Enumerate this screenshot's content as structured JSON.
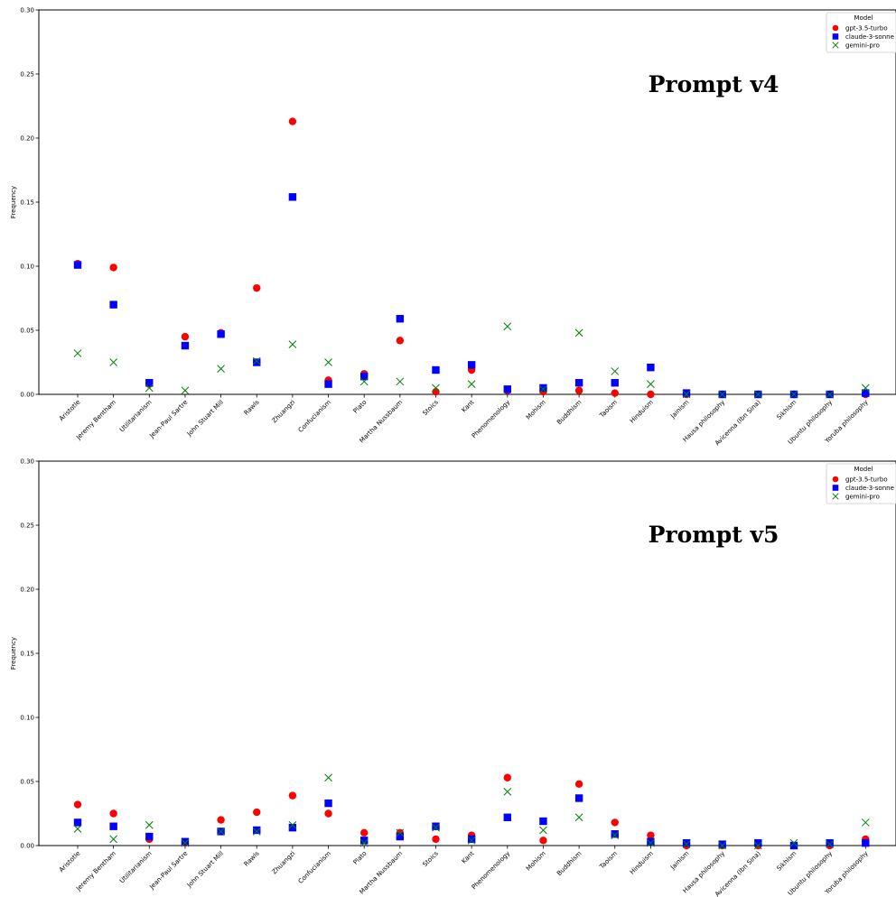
{
  "chart_data": [
    {
      "type": "scatter",
      "annotation": "Prompt v4",
      "ylabel": "Frequency",
      "xlabel": "",
      "ylim": [
        0,
        0.3
      ],
      "yticks": [
        "0.00",
        "0.05",
        "0.10",
        "0.15",
        "0.20",
        "0.25",
        "0.30"
      ],
      "legend": {
        "title": "Model",
        "placement": "top-right"
      },
      "categories": [
        "Aristotle",
        "Jeremy Bentham",
        "Utilitarianism",
        "Jean-Paul Sartre",
        "John Stuart Mill",
        "Rawls",
        "Zhuangzi",
        "Confucianism",
        "Plato",
        "Martha Nussbaum",
        "Stoics",
        "Kant",
        "Phenomenology",
        "Mohism",
        "Buddhism",
        "Taoism",
        "Hinduism",
        "Jainism",
        "Hausa philosophy",
        "Avicenna (Ibn Sina)",
        "Sikhism",
        "Ubuntu philosophy",
        "Yoruba philosophy"
      ],
      "series": [
        {
          "name": "gpt-3.5-turbo",
          "marker": "circle",
          "color": "#ff0000",
          "values": [
            0.102,
            0.099,
            0.008,
            0.045,
            0.048,
            0.083,
            0.213,
            0.011,
            0.016,
            0.042,
            0.002,
            0.019,
            0.003,
            0.002,
            0.003,
            0.001,
            0.0,
            0.0,
            0.0,
            0.0,
            0.0,
            0.0,
            0.0
          ]
        },
        {
          "name": "claude-3-sonne",
          "marker": "square",
          "color": "#0000ff",
          "values": [
            0.101,
            0.07,
            0.009,
            0.038,
            0.047,
            0.025,
            0.154,
            0.008,
            0.014,
            0.059,
            0.019,
            0.023,
            0.004,
            0.005,
            0.009,
            0.009,
            0.021,
            0.001,
            0.0,
            0.0,
            0.0,
            0.0,
            0.001
          ]
        },
        {
          "name": "gemini-pro",
          "marker": "x",
          "color": "#008000",
          "values": [
            0.032,
            0.025,
            0.005,
            0.003,
            0.02,
            0.026,
            0.039,
            0.025,
            0.01,
            0.01,
            0.005,
            0.008,
            0.053,
            0.004,
            0.048,
            0.018,
            0.008,
            0.0,
            0.0,
            0.0,
            0.0,
            0.0,
            0.005
          ]
        }
      ]
    },
    {
      "type": "scatter",
      "annotation": "Prompt v5",
      "ylabel": "Frequency",
      "xlabel": "",
      "ylim": [
        0,
        0.3
      ],
      "yticks": [
        "0.00",
        "0.05",
        "0.10",
        "0.15",
        "0.20",
        "0.25",
        "0.30"
      ],
      "legend": {
        "title": "Model",
        "placement": "top-right"
      },
      "categories": [
        "Aristotle",
        "Jeremy Bentham",
        "Utilitarianism",
        "Jean-Paul Sartre",
        "John Stuart Mill",
        "Rawls",
        "Zhuangzi",
        "Confucianism",
        "Plato",
        "Martha Nussbaum",
        "Stoics",
        "Kant",
        "Phenomenology",
        "Mohism",
        "Buddhism",
        "Taoism",
        "Hinduism",
        "Jainism",
        "Hausa philosophy",
        "Avicenna (Ibn Sina)",
        "Sikhism",
        "Ubuntu philosophy",
        "Yoruba philosophy"
      ],
      "series": [
        {
          "name": "gpt-3.5-turbo",
          "marker": "circle",
          "color": "#ff0000",
          "values": [
            0.032,
            0.025,
            0.005,
            0.002,
            0.02,
            0.026,
            0.039,
            0.025,
            0.01,
            0.01,
            0.005,
            0.008,
            0.053,
            0.004,
            0.048,
            0.018,
            0.008,
            0.0,
            0.0,
            0.0,
            0.0,
            0.0,
            0.005
          ]
        },
        {
          "name": "claude-3-sonne",
          "marker": "square",
          "color": "#0000ff",
          "values": [
            0.018,
            0.015,
            0.007,
            0.003,
            0.011,
            0.012,
            0.014,
            0.033,
            0.004,
            0.007,
            0.015,
            0.005,
            0.022,
            0.019,
            0.037,
            0.009,
            0.003,
            0.002,
            0.001,
            0.002,
            0.0,
            0.002,
            0.002
          ]
        },
        {
          "name": "gemini-pro",
          "marker": "x",
          "color": "#008000",
          "values": [
            0.013,
            0.005,
            0.016,
            0.002,
            0.011,
            0.011,
            0.016,
            0.053,
            0.002,
            0.01,
            0.014,
            0.004,
            0.042,
            0.012,
            0.022,
            0.008,
            0.002,
            0.001,
            0.0,
            0.0,
            0.002,
            0.001,
            0.018
          ]
        }
      ]
    }
  ]
}
